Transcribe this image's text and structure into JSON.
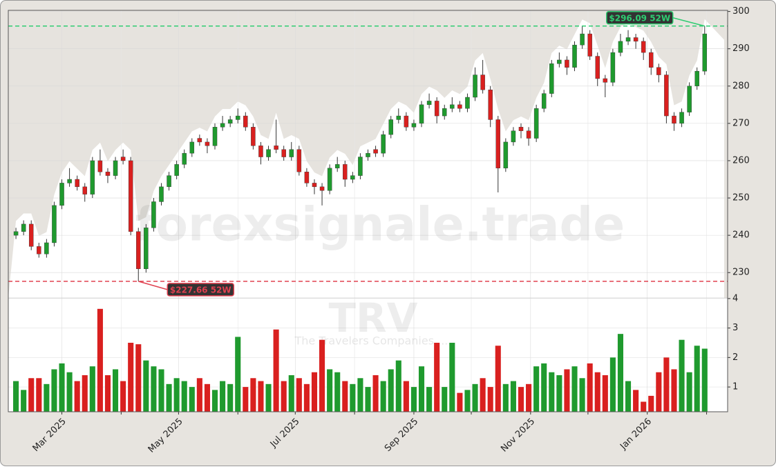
{
  "chart_data": {
    "type": "candlestick",
    "x": [
      "2025-02-05",
      "2025-02-09",
      "2025-02-13",
      "2025-02-17",
      "2025-02-21",
      "2025-02-25",
      "2025-03-01",
      "2025-03-05",
      "2025-03-09",
      "2025-03-13",
      "2025-03-17",
      "2025-03-21",
      "2025-03-25",
      "2025-03-29",
      "2025-04-02",
      "2025-04-06",
      "2025-04-10",
      "2025-04-14",
      "2025-04-18",
      "2025-04-22",
      "2025-04-26",
      "2025-04-30",
      "2025-05-04",
      "2025-05-08",
      "2025-05-12",
      "2025-05-16",
      "2025-05-20",
      "2025-05-24",
      "2025-05-28",
      "2025-06-01",
      "2025-06-05",
      "2025-06-09",
      "2025-06-13",
      "2025-06-17",
      "2025-06-21",
      "2025-06-25",
      "2025-06-29",
      "2025-07-03",
      "2025-07-07",
      "2025-07-11",
      "2025-07-15",
      "2025-07-19",
      "2025-07-23",
      "2025-07-27",
      "2025-07-31",
      "2025-08-04",
      "2025-08-08",
      "2025-08-12",
      "2025-08-16",
      "2025-08-20",
      "2025-08-24",
      "2025-08-28",
      "2025-09-01",
      "2025-09-05",
      "2025-09-09",
      "2025-09-13",
      "2025-09-17",
      "2025-09-21",
      "2025-09-25",
      "2025-09-29",
      "2025-10-03",
      "2025-10-07",
      "2025-10-11",
      "2025-10-15",
      "2025-10-19",
      "2025-10-23",
      "2025-10-27",
      "2025-10-31",
      "2025-11-04",
      "2025-11-08",
      "2025-11-12",
      "2025-11-16",
      "2025-11-20",
      "2025-11-24",
      "2025-11-28",
      "2025-12-02",
      "2025-12-06",
      "2025-12-10",
      "2025-12-14",
      "2025-12-18",
      "2025-12-22",
      "2025-12-26",
      "2025-12-30",
      "2026-01-03",
      "2026-01-07",
      "2026-01-11",
      "2026-01-15",
      "2026-01-19",
      "2026-01-23",
      "2026-01-27",
      "2026-01-31"
    ],
    "open": [
      240,
      241,
      243,
      237,
      235,
      238,
      248,
      254,
      255,
      253,
      251,
      260,
      257,
      256,
      261,
      260,
      241,
      231,
      242,
      249,
      253,
      256,
      259,
      262,
      266,
      265,
      264,
      269,
      270,
      271,
      272,
      269,
      264,
      261,
      264,
      263,
      261,
      263,
      257,
      254,
      253,
      252,
      258,
      259,
      255,
      256,
      261,
      263,
      262,
      267,
      271,
      272,
      269,
      270,
      275,
      276,
      272,
      274,
      275,
      274,
      277,
      283,
      279,
      271,
      258,
      265,
      269,
      268,
      266,
      274,
      278,
      286,
      287,
      285,
      291,
      294,
      288,
      282,
      281,
      289,
      292,
      293,
      292,
      289,
      285,
      283,
      272,
      270,
      273,
      280,
      284
    ],
    "high": [
      242,
      244,
      244,
      238,
      239,
      249,
      255,
      258,
      256,
      254,
      261,
      263,
      258,
      261,
      263,
      261,
      242,
      243,
      250,
      254,
      257,
      260,
      263,
      266,
      267,
      266,
      270,
      272,
      272,
      274,
      273,
      270,
      265,
      264,
      271,
      264,
      265,
      264,
      258,
      255,
      254,
      259,
      261,
      260,
      257,
      262,
      263,
      264,
      268,
      272,
      274,
      273,
      271,
      276,
      278,
      277,
      275,
      277,
      276,
      278,
      285,
      287,
      280,
      272,
      266,
      269,
      270,
      269,
      275,
      279,
      287,
      289,
      288,
      292,
      296,
      295,
      289,
      283,
      290,
      294,
      295,
      294,
      293,
      290,
      286,
      284,
      273,
      274,
      281,
      285,
      296.09
    ],
    "low": [
      239,
      240,
      236,
      234,
      234,
      237,
      247,
      253,
      252,
      249,
      250,
      256,
      254,
      255,
      259,
      240,
      227.66,
      230,
      241,
      248,
      252,
      255,
      258,
      261,
      264,
      262,
      263,
      268,
      269,
      270,
      268,
      263,
      259,
      260,
      262,
      260,
      260,
      256,
      253,
      251,
      248,
      251,
      257,
      253,
      254,
      255,
      260,
      261,
      261,
      266,
      270,
      268,
      268,
      269,
      274,
      270,
      271,
      273,
      273,
      273,
      276,
      278,
      269,
      251.5,
      257,
      264,
      266,
      264,
      265,
      273,
      277,
      285,
      283,
      284,
      290,
      287,
      280,
      277,
      280,
      288,
      291,
      290,
      287,
      283,
      281,
      270,
      268,
      269,
      272,
      279,
      283
    ],
    "close": [
      241,
      243,
      237,
      235,
      238,
      248,
      254,
      255,
      253,
      251,
      260,
      257,
      256,
      260,
      260,
      241,
      231,
      242,
      249,
      253,
      256,
      259,
      262,
      265,
      265,
      264,
      269,
      270,
      271,
      272,
      269,
      264,
      261,
      263,
      263,
      261,
      263,
      257,
      254,
      253,
      252,
      258,
      259,
      255,
      256,
      261,
      262,
      262,
      267,
      271,
      272,
      269,
      270,
      275,
      276,
      272,
      274,
      275,
      274,
      277,
      283,
      279,
      271,
      258,
      265,
      268,
      268,
      266,
      274,
      278,
      286,
      287,
      285,
      291,
      294,
      288,
      282,
      281,
      289,
      292,
      293,
      292,
      289,
      285,
      283,
      272,
      270,
      273,
      280,
      284,
      294
    ],
    "volume": [
      1.2,
      0.9,
      1.3,
      1.3,
      1.1,
      1.6,
      1.8,
      1.5,
      1.2,
      1.4,
      1.7,
      3.65,
      1.4,
      1.6,
      1.2,
      2.5,
      2.45,
      1.9,
      1.7,
      1.6,
      1.1,
      1.3,
      1.2,
      1.0,
      1.3,
      1.1,
      0.9,
      1.2,
      1.1,
      2.7,
      1.0,
      1.3,
      1.2,
      1.1,
      2.95,
      1.2,
      1.4,
      1.3,
      1.1,
      1.5,
      2.6,
      1.6,
      1.5,
      1.2,
      1.1,
      1.3,
      1.0,
      1.4,
      1.2,
      1.6,
      1.9,
      1.2,
      1.0,
      1.7,
      1.0,
      2.5,
      1.0,
      2.5,
      0.8,
      0.9,
      1.1,
      1.3,
      1.0,
      2.4,
      1.1,
      1.2,
      1.0,
      1.1,
      1.7,
      1.8,
      1.5,
      1.4,
      1.6,
      1.7,
      1.3,
      1.8,
      1.5,
      1.4,
      2.0,
      2.8,
      1.2,
      0.9,
      0.5,
      0.7,
      1.5,
      2.0,
      1.6,
      2.6,
      1.5,
      2.4,
      2.3
    ],
    "up_color": "#1f9a2e",
    "down_color": "#d9201f",
    "ylim": [
      223.2,
      300.3
    ],
    "yticks": [
      230,
      240,
      250,
      260,
      270,
      280,
      290,
      300
    ],
    "volume_ylim": [
      0.16,
      4.02
    ],
    "volume_yticks": [
      1,
      2,
      3,
      4
    ],
    "xlim": [
      "2025-02-01",
      "2026-02-12"
    ],
    "xticks": [
      {
        "value": "2025-03-01",
        "label": "Mar 2025"
      },
      {
        "value": "2025-05-01",
        "label": "May 2025"
      },
      {
        "value": "2025-07-01",
        "label": "Jul 2025"
      },
      {
        "value": "2025-09-01",
        "label": "Sep 2025"
      },
      {
        "value": "2025-11-01",
        "label": "Nov 2025"
      },
      {
        "value": "2026-01-01",
        "label": "Jan 2026"
      }
    ],
    "xminor": [
      "2025-04-01",
      "2025-06-01",
      "2025-08-01",
      "2025-10-01",
      "2025-12-01",
      "2026-02-01"
    ],
    "grid": true,
    "annotations": [
      {
        "label": "$296.09 52W",
        "value": 296.09,
        "color": "#2ecc71"
      },
      {
        "label": "$227.66 52W",
        "value": 227.66,
        "color": "#e0404f"
      }
    ],
    "watermark": "forexsignale.trade",
    "symbol": "TRV",
    "company": "The Travelers Companies, ..."
  }
}
